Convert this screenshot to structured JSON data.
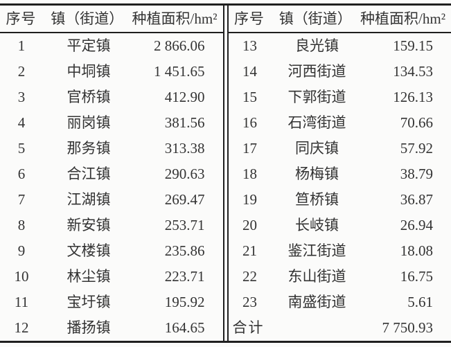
{
  "colors": {
    "background": "#fbfbfa",
    "text": "#333333",
    "rule": "#1f1f1f"
  },
  "table": {
    "header": {
      "no": "序号",
      "town": "镇（街道）",
      "area": "种植面积/hm²"
    },
    "left_rows": [
      {
        "no": "1",
        "town": "平定镇",
        "area": "2 866.06"
      },
      {
        "no": "2",
        "town": "中垌镇",
        "area": "1 451.65"
      },
      {
        "no": "3",
        "town": "官桥镇",
        "area": "412.90"
      },
      {
        "no": "4",
        "town": "丽岗镇",
        "area": "381.56"
      },
      {
        "no": "5",
        "town": "那务镇",
        "area": "313.38"
      },
      {
        "no": "6",
        "town": "合江镇",
        "area": "290.63"
      },
      {
        "no": "7",
        "town": "江湖镇",
        "area": "269.47"
      },
      {
        "no": "8",
        "town": "新安镇",
        "area": "253.71"
      },
      {
        "no": "9",
        "town": "文楼镇",
        "area": "235.86"
      },
      {
        "no": "10",
        "town": "林尘镇",
        "area": "223.71"
      },
      {
        "no": "11",
        "town": "宝圩镇",
        "area": "195.92"
      },
      {
        "no": "12",
        "town": "播扬镇",
        "area": "164.65"
      }
    ],
    "right_rows": [
      {
        "no": "13",
        "town": "良光镇",
        "area": "159.15"
      },
      {
        "no": "14",
        "town": "河西街道",
        "area": "134.53"
      },
      {
        "no": "15",
        "town": "下郭街道",
        "area": "126.13"
      },
      {
        "no": "16",
        "town": "石湾街道",
        "area": "70.66"
      },
      {
        "no": "17",
        "town": "同庆镇",
        "area": "57.92"
      },
      {
        "no": "18",
        "town": "杨梅镇",
        "area": "38.79"
      },
      {
        "no": "19",
        "town": "笪桥镇",
        "area": "36.87"
      },
      {
        "no": "20",
        "town": "长岐镇",
        "area": "26.94"
      },
      {
        "no": "21",
        "town": "鉴江街道",
        "area": "18.08"
      },
      {
        "no": "22",
        "town": "东山街道",
        "area": "16.75"
      },
      {
        "no": "23",
        "town": "南盛街道",
        "area": "5.61"
      }
    ],
    "total": {
      "label": "合计",
      "value": "7 750.93"
    }
  }
}
